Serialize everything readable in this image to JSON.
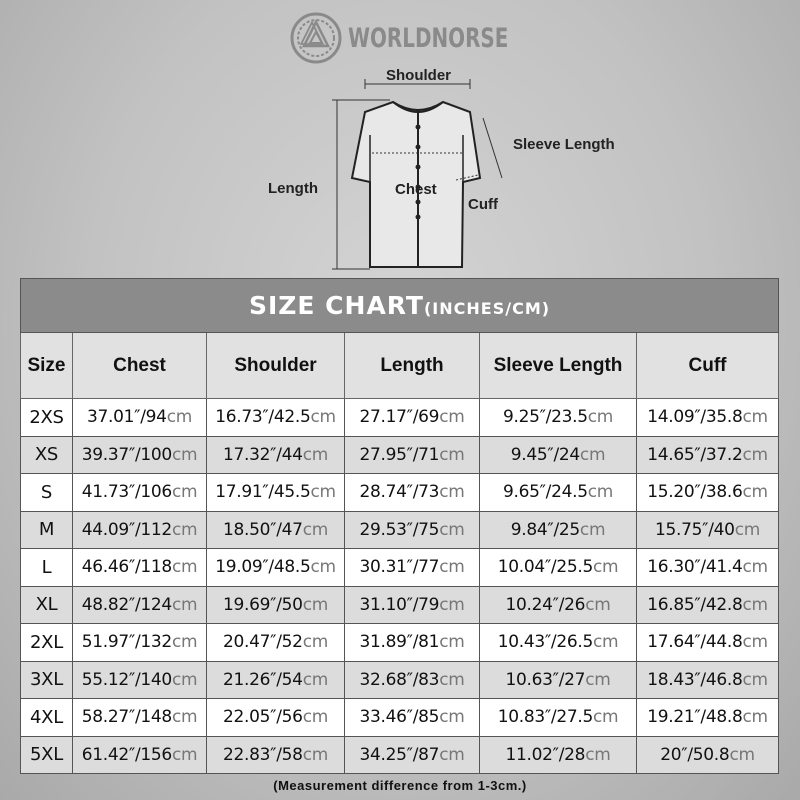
{
  "brand": {
    "name": "WORLDNORSE",
    "logo_icon": "valknut-knot-icon"
  },
  "diagram": {
    "labels": {
      "shoulder": "Shoulder",
      "sleeve_length": "Sleeve Length",
      "length": "Length",
      "chest": "Chest",
      "cuff": "Cuff"
    }
  },
  "table": {
    "title": "SIZE CHART",
    "title_units": "(INCHES/CM)",
    "unit": "cm",
    "headers": [
      "Size",
      "Chest",
      "Shoulder",
      "Length",
      "Sleeve Length",
      "Cuff"
    ],
    "rows": [
      {
        "size": "2XS",
        "cells": [
          "37.01″/94",
          "16.73″/42.5",
          "27.17″/69",
          "9.25″/23.5",
          "14.09″/35.8"
        ]
      },
      {
        "size": "XS",
        "cells": [
          "39.37″/100",
          "17.32″/44",
          "27.95″/71",
          "9.45″/24",
          "14.65″/37.2"
        ]
      },
      {
        "size": "S",
        "cells": [
          "41.73″/106",
          "17.91″/45.5",
          "28.74″/73",
          "9.65″/24.5",
          "15.20″/38.6"
        ]
      },
      {
        "size": "M",
        "cells": [
          "44.09″/112",
          "18.50″/47",
          "29.53″/75",
          "9.84″/25",
          "15.75″/40"
        ]
      },
      {
        "size": "L",
        "cells": [
          "46.46″/118",
          "19.09″/48.5",
          "30.31″/77",
          "10.04″/25.5",
          "16.30″/41.4"
        ]
      },
      {
        "size": "XL",
        "cells": [
          "48.82″/124",
          "19.69″/50",
          "31.10″/79",
          "10.24″/26",
          "16.85″/42.8"
        ]
      },
      {
        "size": "2XL",
        "cells": [
          "51.97″/132",
          "20.47″/52",
          "31.89″/81",
          "10.43″/26.5",
          "17.64″/44.8"
        ]
      },
      {
        "size": "3XL",
        "cells": [
          "55.12″/140",
          "21.26″/54",
          "32.68″/83",
          "10.63″/27",
          "18.43″/46.8"
        ]
      },
      {
        "size": "4XL",
        "cells": [
          "58.27″/148",
          "22.05″/56",
          "33.46″/85",
          "10.83″/27.5",
          "19.21″/48.8"
        ]
      },
      {
        "size": "5XL",
        "cells": [
          "61.42″/156",
          "22.83″/58",
          "34.25″/87",
          "11.02″/28",
          "20″/50.8"
        ]
      }
    ]
  },
  "note": "(Measurement difference from 1-3cm.)",
  "colors": {
    "title_bar": "#8b8b8b",
    "header_row": "#e1e1e1",
    "alt_row": "#dcdcdc",
    "unit_text": "#777777"
  }
}
